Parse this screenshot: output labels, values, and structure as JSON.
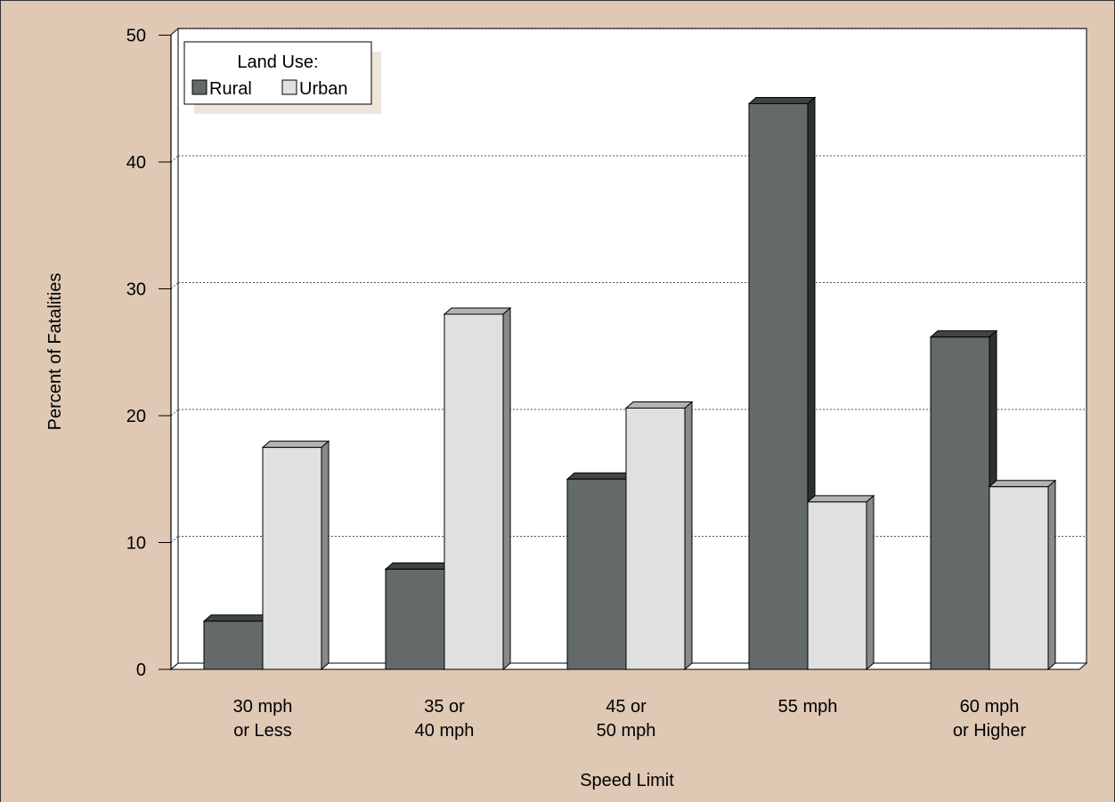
{
  "chart_data": {
    "type": "bar",
    "xlabel": "Speed Limit",
    "ylabel": "Percent of Fatalities",
    "ylim": [
      0,
      50
    ],
    "yticks": [
      0,
      10,
      20,
      30,
      40,
      50
    ],
    "grid": true,
    "legend_placement": "top-left",
    "legend_title": "Land Use:",
    "categories": [
      [
        "30 mph",
        "or Less"
      ],
      [
        "35 or",
        "40 mph"
      ],
      [
        "45 or",
        "50 mph"
      ],
      [
        "55 mph"
      ],
      [
        "60 mph",
        "or Higher"
      ]
    ],
    "series": [
      {
        "name": "Rural",
        "values": [
          3.8,
          7.9,
          15.0,
          44.6,
          26.2
        ]
      },
      {
        "name": "Urban",
        "values": [
          17.5,
          28.0,
          20.6,
          13.2,
          14.4
        ]
      }
    ]
  },
  "colors": {
    "background": "#dfc9b4",
    "plot_area": "#ffffff",
    "rural_front": "#646a69",
    "rural_top": "#3e4544",
    "rural_side": "#2c3231",
    "urban_front": "#e0e0e0",
    "urban_top": "#b3b3b3",
    "urban_side": "#8a8a8a",
    "grid": "#555555"
  }
}
